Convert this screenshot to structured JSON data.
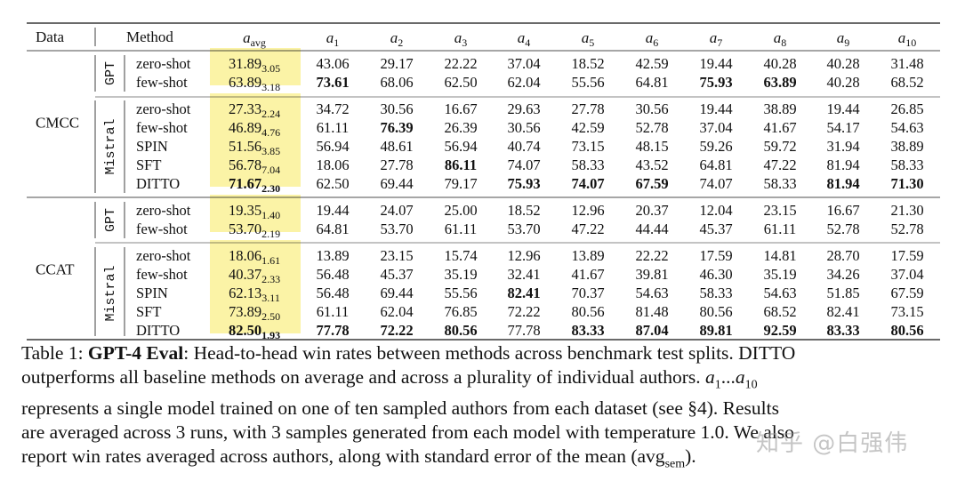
{
  "table": {
    "headers": {
      "data": "Data",
      "method": "Method",
      "avg": {
        "base": "a",
        "sub": "avg"
      },
      "authors": [
        {
          "base": "a",
          "sub": "1"
        },
        {
          "base": "a",
          "sub": "2"
        },
        {
          "base": "a",
          "sub": "3"
        },
        {
          "base": "a",
          "sub": "4"
        },
        {
          "base": "a",
          "sub": "5"
        },
        {
          "base": "a",
          "sub": "6"
        },
        {
          "base": "a",
          "sub": "7"
        },
        {
          "base": "a",
          "sub": "8"
        },
        {
          "base": "a",
          "sub": "9"
        },
        {
          "base": "a",
          "sub": "10"
        }
      ]
    },
    "datasets": [
      {
        "name": "CMCC",
        "groups": [
          {
            "model": "GPT",
            "rows": [
              {
                "method": "zero-shot",
                "avg": "31.89",
                "sem": "3.05",
                "avg_bold": false,
                "values": [
                  "43.06",
                  "29.17",
                  "22.22",
                  "37.04",
                  "18.52",
                  "42.59",
                  "19.44",
                  "40.28",
                  "40.28",
                  "31.48"
                ],
                "bold": []
              },
              {
                "method": "few-shot",
                "avg": "63.89",
                "sem": "3.18",
                "avg_bold": false,
                "values": [
                  "73.61",
                  "68.06",
                  "62.50",
                  "62.04",
                  "55.56",
                  "64.81",
                  "75.93",
                  "63.89",
                  "40.28",
                  "68.52"
                ],
                "bold": [
                  0,
                  6,
                  7
                ]
              }
            ]
          },
          {
            "model": "Mistral",
            "rows": [
              {
                "method": "zero-shot",
                "avg": "27.33",
                "sem": "2.24",
                "avg_bold": false,
                "values": [
                  "34.72",
                  "30.56",
                  "16.67",
                  "29.63",
                  "27.78",
                  "30.56",
                  "19.44",
                  "38.89",
                  "19.44",
                  "26.85"
                ],
                "bold": []
              },
              {
                "method": "few-shot",
                "avg": "46.89",
                "sem": "4.76",
                "avg_bold": false,
                "values": [
                  "61.11",
                  "76.39",
                  "26.39",
                  "30.56",
                  "42.59",
                  "52.78",
                  "37.04",
                  "41.67",
                  "54.17",
                  "54.63"
                ],
                "bold": [
                  1
                ]
              },
              {
                "method": "SPIN",
                "avg": "51.56",
                "sem": "3.85",
                "avg_bold": false,
                "values": [
                  "56.94",
                  "48.61",
                  "56.94",
                  "40.74",
                  "73.15",
                  "48.15",
                  "59.26",
                  "59.72",
                  "31.94",
                  "38.89"
                ],
                "bold": []
              },
              {
                "method": "SFT",
                "avg": "56.78",
                "sem": "7.04",
                "avg_bold": false,
                "values": [
                  "18.06",
                  "27.78",
                  "86.11",
                  "74.07",
                  "58.33",
                  "43.52",
                  "64.81",
                  "47.22",
                  "81.94",
                  "58.33"
                ],
                "bold": [
                  2
                ]
              },
              {
                "method": "DITTO",
                "avg": "71.67",
                "sem": "2.30",
                "avg_bold": true,
                "values": [
                  "62.50",
                  "69.44",
                  "79.17",
                  "75.93",
                  "74.07",
                  "67.59",
                  "74.07",
                  "58.33",
                  "81.94",
                  "71.30"
                ],
                "bold": [
                  3,
                  4,
                  5,
                  8,
                  9
                ]
              }
            ]
          }
        ]
      },
      {
        "name": "CCAT",
        "groups": [
          {
            "model": "GPT",
            "rows": [
              {
                "method": "zero-shot",
                "avg": "19.35",
                "sem": "1.40",
                "avg_bold": false,
                "values": [
                  "19.44",
                  "24.07",
                  "25.00",
                  "18.52",
                  "12.96",
                  "20.37",
                  "12.04",
                  "23.15",
                  "16.67",
                  "21.30"
                ],
                "bold": []
              },
              {
                "method": "few-shot",
                "avg": "53.70",
                "sem": "2.19",
                "avg_bold": false,
                "values": [
                  "64.81",
                  "53.70",
                  "61.11",
                  "53.70",
                  "47.22",
                  "44.44",
                  "45.37",
                  "61.11",
                  "52.78",
                  "52.78"
                ],
                "bold": []
              }
            ]
          },
          {
            "model": "Mistral",
            "rows": [
              {
                "method": "zero-shot",
                "avg": "18.06",
                "sem": "1.61",
                "avg_bold": false,
                "values": [
                  "13.89",
                  "23.15",
                  "15.74",
                  "12.96",
                  "13.89",
                  "22.22",
                  "17.59",
                  "14.81",
                  "28.70",
                  "17.59"
                ],
                "bold": []
              },
              {
                "method": "few-shot",
                "avg": "40.37",
                "sem": "2.33",
                "avg_bold": false,
                "values": [
                  "56.48",
                  "45.37",
                  "35.19",
                  "32.41",
                  "41.67",
                  "39.81",
                  "46.30",
                  "35.19",
                  "34.26",
                  "37.04"
                ],
                "bold": []
              },
              {
                "method": "SPIN",
                "avg": "62.13",
                "sem": "3.11",
                "avg_bold": false,
                "values": [
                  "56.48",
                  "69.44",
                  "55.56",
                  "82.41",
                  "70.37",
                  "54.63",
                  "58.33",
                  "54.63",
                  "51.85",
                  "67.59"
                ],
                "bold": [
                  3
                ]
              },
              {
                "method": "SFT",
                "avg": "73.89",
                "sem": "2.50",
                "avg_bold": false,
                "values": [
                  "61.11",
                  "62.04",
                  "76.85",
                  "72.22",
                  "80.56",
                  "81.48",
                  "80.56",
                  "68.52",
                  "82.41",
                  "73.15"
                ],
                "bold": []
              },
              {
                "method": "DITTO",
                "avg": "82.50",
                "sem": "1.93",
                "avg_bold": true,
                "values": [
                  "77.78",
                  "72.22",
                  "80.56",
                  "77.78",
                  "83.33",
                  "87.04",
                  "89.81",
                  "92.59",
                  "83.33",
                  "80.56"
                ],
                "bold": [
                  0,
                  1,
                  2,
                  4,
                  5,
                  6,
                  7,
                  8,
                  9
                ]
              }
            ]
          }
        ]
      }
    ],
    "colors": {
      "highlight": "#fbf3a6",
      "rule": "#111111",
      "text": "#111111"
    }
  },
  "caption": {
    "label": "Table 1:",
    "title": "GPT-4 Eval",
    "line1_rest": ": Head-to-head win rates between methods across benchmark test splits. DITTO",
    "line2": "outperforms all baseline methods on average and across a plurality of individual authors.",
    "line2_math_a": "a",
    "line2_math_a_sub": "1",
    "line2_math_dots": "...",
    "line2_math_b": "a",
    "line2_math_b_sub": "10",
    "line3": "represents a single model trained on one of ten sampled authors from each dataset (see §4). Results",
    "line4": "are averaged across 3 runs, with 3 samples generated from each model with temperature 1.0. We also",
    "line5_pre": "report win rates averaged across authors, along with standard error of the mean (avg",
    "line5_sub": "sem",
    "line5_post": ")."
  },
  "watermark": "知乎 @白强伟"
}
